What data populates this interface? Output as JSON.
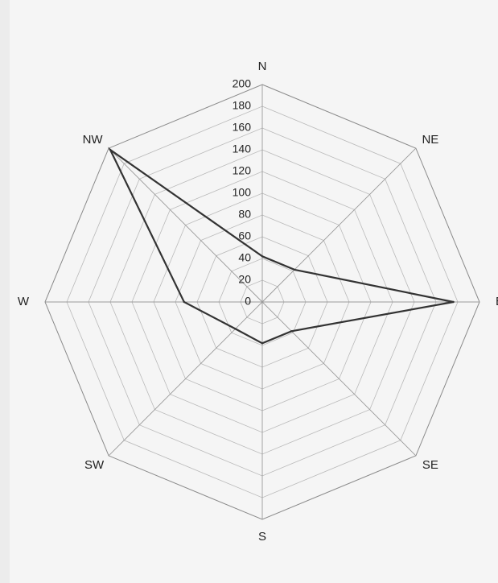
{
  "chart_data": {
    "type": "radar",
    "categories": [
      "N",
      "NE",
      "E",
      "SE",
      "S",
      "SW",
      "W",
      "NW"
    ],
    "series": [
      {
        "values": [
          42,
          42,
          176,
          38,
          38,
          35,
          72,
          198
        ]
      }
    ],
    "rlim": [
      0,
      200
    ],
    "tick_step": 20,
    "tick_labels": [
      "0",
      "20",
      "40",
      "60",
      "80",
      "100",
      "120",
      "140",
      "160",
      "180",
      "200"
    ],
    "grid": true,
    "colors": {
      "series": "#333333",
      "grid": "#b9b9b9",
      "spokes": "#9a9a9a"
    }
  }
}
